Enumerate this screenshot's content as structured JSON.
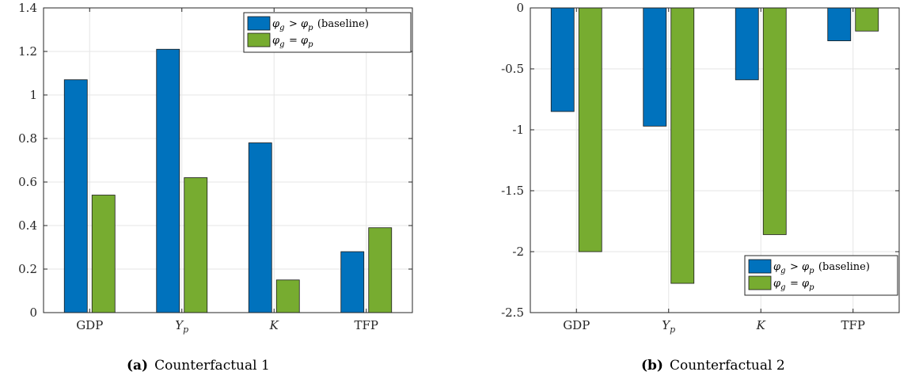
{
  "colors": {
    "series1": "#0072BD",
    "series2": "#77AC30",
    "grid": "#e6e6e6",
    "axis": "#262626"
  },
  "chart_data": [
    {
      "type": "bar",
      "categories": [
        "GDP",
        "Y_p",
        "K",
        "TFP"
      ],
      "category_display": [
        "GDP",
        "Yp",
        "K",
        "TFP"
      ],
      "series": [
        {
          "name": "φg > φp (baseline)",
          "values": [
            1.07,
            1.21,
            0.78,
            0.28
          ]
        },
        {
          "name": "φg = φp",
          "values": [
            0.54,
            0.62,
            0.15,
            0.39
          ]
        }
      ],
      "ylim": [
        0,
        1.4
      ],
      "yticks": [
        0,
        0.2,
        0.4,
        0.6,
        0.8,
        1,
        1.2,
        1.4
      ],
      "grid": true,
      "legend_position": "top-right",
      "caption_tag": "(a)",
      "caption_text": "Counterfactual 1"
    },
    {
      "type": "bar",
      "categories": [
        "GDP",
        "Y_p",
        "K",
        "TFP"
      ],
      "category_display": [
        "GDP",
        "Yp",
        "K",
        "TFP"
      ],
      "series": [
        {
          "name": "φg > φp (baseline)",
          "values": [
            -0.85,
            -0.97,
            -0.59,
            -0.27
          ]
        },
        {
          "name": "φg = φp",
          "values": [
            -2.0,
            -2.26,
            -1.86,
            -0.19
          ]
        }
      ],
      "ylim": [
        -2.5,
        0
      ],
      "yticks": [
        -2.5,
        -2,
        -1.5,
        -1,
        -0.5,
        0
      ],
      "grid": true,
      "legend_position": "bottom-right",
      "caption_tag": "(b)",
      "caption_text": "Counterfactual 2"
    }
  ]
}
